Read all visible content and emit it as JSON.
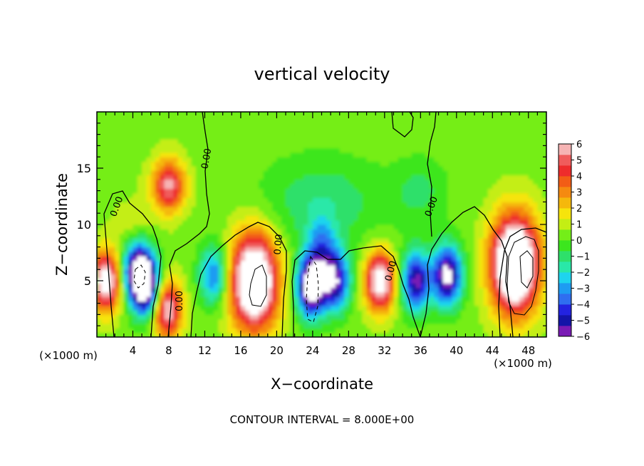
{
  "chart_data": {
    "type": "heatmap",
    "title": "vertical velocity",
    "xlabel": "X−coordinate",
    "ylabel": "Z−coordinate",
    "x_units": "(×1000 m)",
    "y_units": "(×1000 m)",
    "footer": "CONTOUR INTERVAL = 8.000E+00",
    "xlim": [
      0,
      50
    ],
    "ylim": [
      0,
      20
    ],
    "x_ticks": [
      "4",
      "8",
      "12",
      "16",
      "20",
      "24",
      "28",
      "32",
      "36",
      "40",
      "44",
      "48"
    ],
    "y_ticks": [
      "5",
      "10",
      "15"
    ],
    "colorbar": {
      "min": -6,
      "max": 6,
      "tick_labels": [
        "6",
        "5",
        "4",
        "3",
        "2",
        "1",
        "0",
        "−1",
        "−2",
        "−3",
        "−4",
        "−5",
        "−6"
      ],
      "colors": [
        "#7a1bb5",
        "#1414a8",
        "#2323e0",
        "#2f6ef0",
        "#1e9cf2",
        "#1ed4ee",
        "#29e8a8",
        "#2ee06a",
        "#3ce61e",
        "#74ee18",
        "#c4ee14",
        "#f6e40c",
        "#f5b80c",
        "#f58a10",
        "#f25d16",
        "#ee2c2c",
        "#f05c5c",
        "#f6b4b4"
      ]
    },
    "contour_labels": [
      "0.00",
      "0.00",
      "0.00",
      "0.00",
      "0.00",
      "0.00"
    ],
    "features": [
      {
        "x": 1.0,
        "z": 5.0,
        "w": 7
      },
      {
        "x": 4.5,
        "z": 6.0,
        "w": -6
      },
      {
        "x": 5.5,
        "z": 4.5,
        "w": -7
      },
      {
        "x": 7.8,
        "z": 2.5,
        "w": 6
      },
      {
        "x": 8.0,
        "z": 13.5,
        "w": 3
      },
      {
        "x": 13.0,
        "z": 5.5,
        "w": -4
      },
      {
        "x": 17.5,
        "z": 5.0,
        "w": 9
      },
      {
        "x": 23.8,
        "z": 4.5,
        "w": -8
      },
      {
        "x": 26.5,
        "z": 5.0,
        "w": -6
      },
      {
        "x": 25.0,
        "z": 8.0,
        "w": -3
      },
      {
        "x": 31.5,
        "z": 5.0,
        "w": 7
      },
      {
        "x": 35.5,
        "z": 5.0,
        "w": -6
      },
      {
        "x": 39.0,
        "z": 5.5,
        "w": -7
      },
      {
        "x": 46.5,
        "z": 6.5,
        "w": 10
      }
    ]
  }
}
